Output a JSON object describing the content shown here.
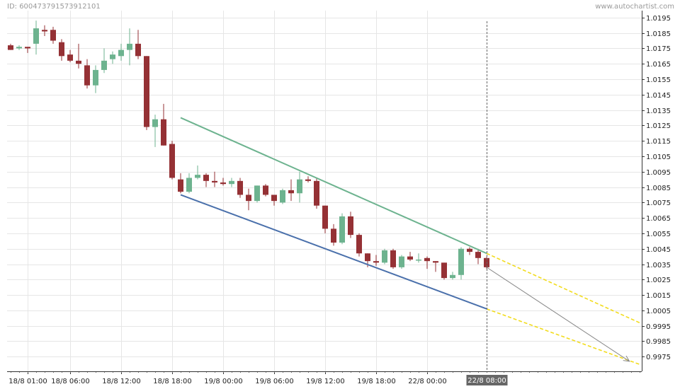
{
  "header": {
    "id_label": "ID: 6004737915739121​01",
    "watermark": "www.autochartist.com"
  },
  "chart_data": {
    "type": "candlestick",
    "y_ticks": [
      "1.0195",
      "1.0185",
      "1.0175",
      "1.0165",
      "1.0155",
      "1.0145",
      "1.0135",
      "1.0125",
      "1.0115",
      "1.0105",
      "1.0095",
      "1.0085",
      "1.0075",
      "1.0065",
      "1.0055",
      "1.0045",
      "1.0035",
      "1.0025",
      "1.0015",
      "1.0005",
      "0.9995",
      "0.9985",
      "0.9975"
    ],
    "x_ticks": [
      {
        "label": "18/8 01:00",
        "index": 2
      },
      {
        "label": "18/8 06:00",
        "index": 7
      },
      {
        "label": "18/8 12:00",
        "index": 13
      },
      {
        "label": "18/8 18:00",
        "index": 19
      },
      {
        "label": "19/8 00:00",
        "index": 25
      },
      {
        "label": "19/8 06:00",
        "index": 31
      },
      {
        "label": "19/8 12:00",
        "index": 37
      },
      {
        "label": "19/8 18:00",
        "index": 43
      },
      {
        "label": "22/8 00:00",
        "index": 49
      }
    ],
    "current_time_label": "22/8 08:00",
    "current_index": 56,
    "ylim": [
      0.99655,
      1.01995
    ],
    "colors": {
      "up": "#6db38f",
      "down": "#953135",
      "resistance": "#6db38f",
      "support": "#4a70ab",
      "projection": "#f2dc1d",
      "forecast": "#888888",
      "cursor": "#666666",
      "label_bg": "#666666"
    },
    "candles": [
      [
        1.0177,
        1.0178,
        1.0174,
        1.0174
      ],
      [
        1.0175,
        1.0177,
        1.0174,
        1.0176
      ],
      [
        1.0176,
        1.0176,
        1.0172,
        1.0175
      ],
      [
        1.0178,
        1.0193,
        1.0171,
        1.0188
      ],
      [
        1.0187,
        1.019,
        1.0183,
        1.0186
      ],
      [
        1.0187,
        1.0189,
        1.0178,
        1.018
      ],
      [
        1.0179,
        1.0181,
        1.0167,
        1.017
      ],
      [
        1.0171,
        1.0174,
        1.0166,
        1.0167
      ],
      [
        1.0167,
        1.0178,
        1.0162,
        1.0165
      ],
      [
        1.0164,
        1.0168,
        1.0149,
        1.0151
      ],
      [
        1.0151,
        1.0164,
        1.0146,
        1.0161
      ],
      [
        1.0161,
        1.0175,
        1.0159,
        1.0167
      ],
      [
        1.0168,
        1.0173,
        1.0165,
        1.0171
      ],
      [
        1.017,
        1.0178,
        1.0167,
        1.0174
      ],
      [
        1.0174,
        1.0188,
        1.0164,
        1.0178
      ],
      [
        1.0178,
        1.0187,
        1.0168,
        1.017
      ],
      [
        1.017,
        1.017,
        1.0122,
        1.0124
      ],
      [
        1.0124,
        1.0132,
        1.0111,
        1.0129
      ],
      [
        1.0129,
        1.0139,
        1.0112,
        1.0112
      ],
      [
        1.0113,
        1.0115,
        1.009,
        1.0091
      ],
      [
        1.009,
        1.0094,
        1.0081,
        1.0082
      ],
      [
        1.0082,
        1.0094,
        1.0081,
        1.0091
      ],
      [
        1.0091,
        1.0099,
        1.009,
        1.0093
      ],
      [
        1.0093,
        1.0094,
        1.0085,
        1.0089
      ],
      [
        1.0089,
        1.0095,
        1.0085,
        1.0088
      ],
      [
        1.0088,
        1.0091,
        1.0086,
        1.0087
      ],
      [
        1.0087,
        1.0091,
        1.0085,
        1.0089
      ],
      [
        1.0089,
        1.0091,
        1.0078,
        1.008
      ],
      [
        1.008,
        1.0084,
        1.007,
        1.0076
      ],
      [
        1.0076,
        1.0086,
        1.0075,
        1.0086
      ],
      [
        1.0086,
        1.0087,
        1.0079,
        1.008
      ],
      [
        1.008,
        1.008,
        1.0073,
        1.0076
      ],
      [
        1.0075,
        1.0084,
        1.0074,
        1.0083
      ],
      [
        1.0083,
        1.009,
        1.0076,
        1.0081
      ],
      [
        1.0081,
        1.0095,
        1.0075,
        1.009
      ],
      [
        1.009,
        1.0092,
        1.0088,
        1.0089
      ],
      [
        1.0089,
        1.0091,
        1.0071,
        1.0073
      ],
      [
        1.0073,
        1.0073,
        1.0055,
        1.0058
      ],
      [
        1.0058,
        1.0061,
        1.0047,
        1.0049
      ],
      [
        1.0049,
        1.0068,
        1.0048,
        1.0066
      ],
      [
        1.0066,
        1.0069,
        1.0052,
        1.0054
      ],
      [
        1.0054,
        1.0055,
        1.004,
        1.0042
      ],
      [
        1.0042,
        1.0042,
        1.0033,
        1.0037
      ],
      [
        1.0037,
        1.0041,
        1.0034,
        1.0036
      ],
      [
        1.0036,
        1.0045,
        1.0035,
        1.0044
      ],
      [
        1.0044,
        1.0045,
        1.0032,
        1.0033
      ],
      [
        1.0033,
        1.0041,
        1.0032,
        1.004
      ],
      [
        1.004,
        1.0043,
        1.0037,
        1.0038
      ],
      [
        1.0038,
        1.0042,
        1.0036,
        1.0038
      ],
      [
        1.0039,
        1.004,
        1.0032,
        1.0037
      ],
      [
        1.0037,
        1.0037,
        1.003,
        1.0036
      ],
      [
        1.0036,
        1.0036,
        1.0025,
        1.0026
      ],
      [
        1.0026,
        1.003,
        1.0025,
        1.0028
      ],
      [
        1.0028,
        1.0046,
        1.0025,
        1.0045
      ],
      [
        1.0045,
        1.0046,
        1.0041,
        1.0043
      ],
      [
        1.0043,
        1.0045,
        1.0035,
        1.0039
      ],
      [
        1.0039,
        1.004,
        1.0032,
        1.0033
      ]
    ],
    "patterns": {
      "resistance": {
        "from": [
          20,
          1.013
        ],
        "to": [
          56,
          1.0042
        ]
      },
      "support": {
        "from": [
          20,
          1.008
        ],
        "to": [
          56,
          1.0006
        ]
      },
      "projection_upper": {
        "from": [
          56,
          1.0042
        ],
        "to": [
          74,
          0.9997
        ]
      },
      "projection_lower": {
        "from": [
          56,
          1.0006
        ],
        "to": [
          74,
          0.997
        ]
      },
      "forecast": {
        "from": [
          56,
          1.0033
        ],
        "to": [
          72.8,
          0.9972
        ]
      }
    }
  }
}
